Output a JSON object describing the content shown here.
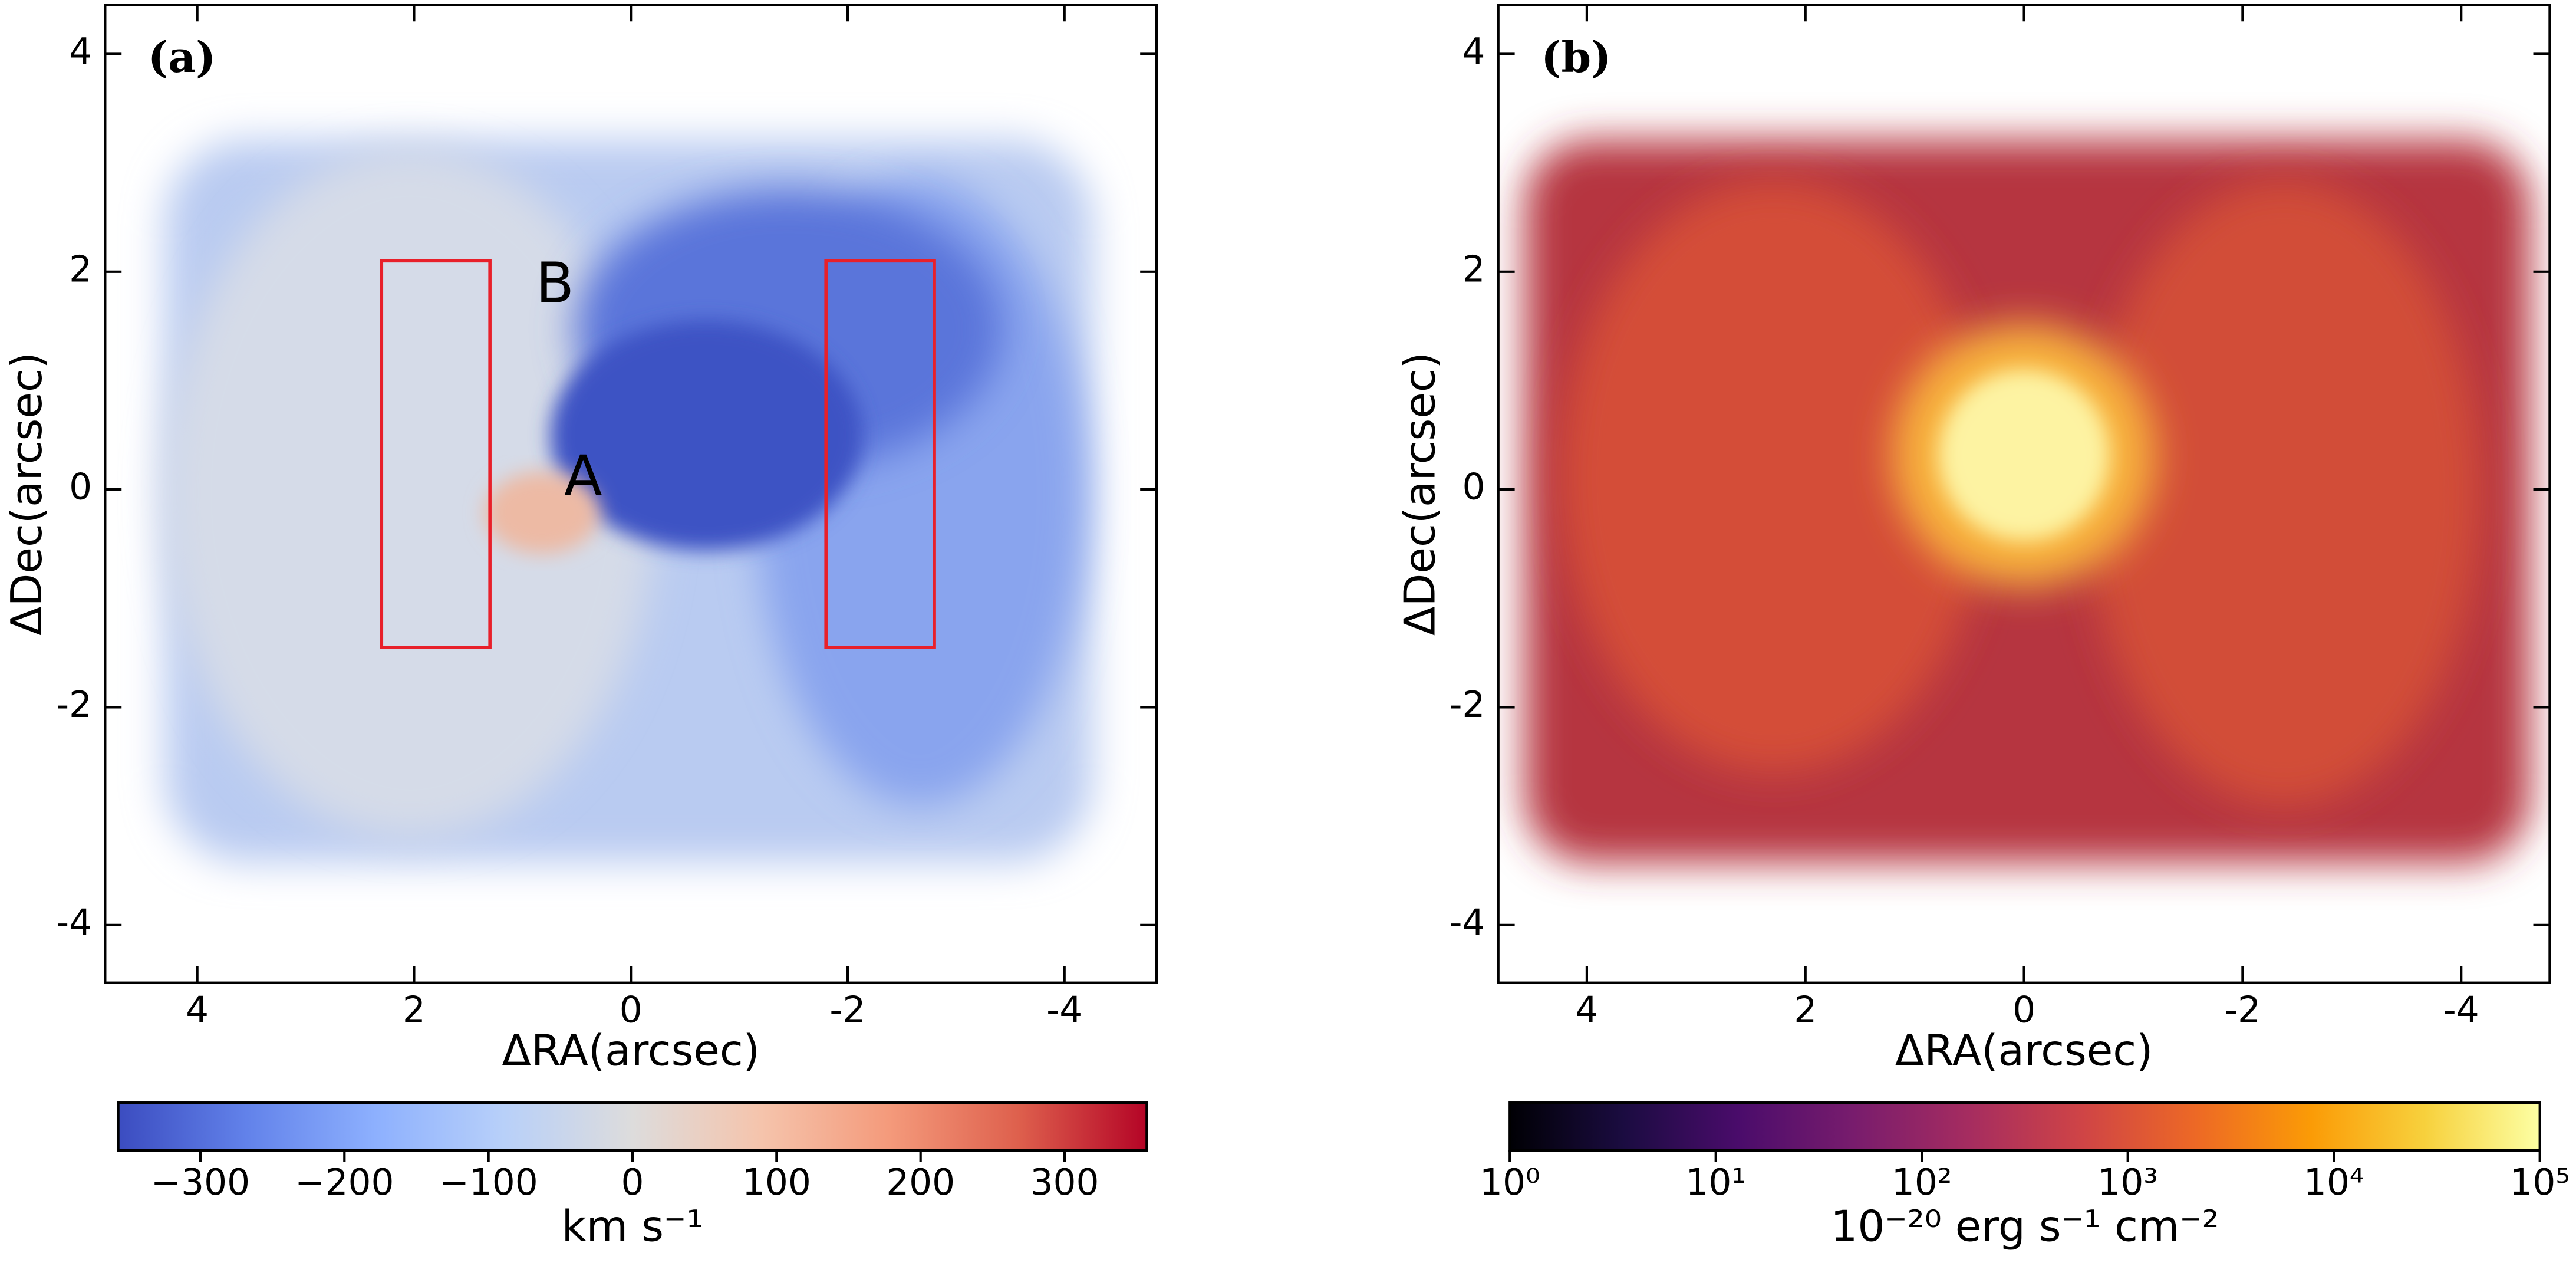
{
  "chart_data": [
    {
      "type": "image",
      "panel_label": "(a)",
      "xlabel": "ΔRA(arcsec)",
      "ylabel": "ΔDec(arcsec)",
      "xlim": [
        4.85,
        -4.85
      ],
      "ylim": [
        -4.53,
        4.45
      ],
      "xticks": [
        4,
        2,
        0,
        -2,
        -4
      ],
      "yticks": [
        -4,
        -2,
        0,
        2,
        4
      ],
      "cmap": "coolwarm",
      "clim": [
        -357,
        357
      ],
      "cticks": [
        {
          "value": -300,
          "label": "−300"
        },
        {
          "value": -200,
          "label": "−200"
        },
        {
          "value": -100,
          "label": "−100"
        },
        0,
        100,
        200,
        300
      ],
      "clabel": "km s⁻¹",
      "boxes": [
        {
          "x": [
            2.3,
            1.3
          ],
          "y": [
            -1.45,
            2.1
          ]
        },
        {
          "x": [
            -1.8,
            -2.8
          ],
          "y": [
            -1.45,
            2.1
          ]
        }
      ],
      "annotations": [
        {
          "text": "B",
          "x": 0.7,
          "y": 1.86
        },
        {
          "text": "A",
          "x": 0.44,
          "y": 0.09
        }
      ],
      "annotation_color": "#e8202a"
    },
    {
      "type": "image",
      "panel_label": "(b)",
      "xlabel": "ΔRA(arcsec)",
      "ylabel": "ΔDec(arcsec)",
      "xlim": [
        4.81,
        -4.81
      ],
      "ylim": [
        -4.53,
        4.45
      ],
      "xticks": [
        4,
        2,
        0,
        -2,
        -4
      ],
      "yticks": [
        -4,
        -2,
        0,
        2,
        4
      ],
      "cmap": "inferno",
      "log_c": true,
      "clim": [
        1,
        100000
      ],
      "cticks": [
        {
          "value": 1,
          "label": "10⁰"
        },
        {
          "value": 10,
          "label": "10¹"
        },
        {
          "value": 100,
          "label": "10²"
        },
        {
          "value": 1000,
          "label": "10³"
        },
        {
          "value": 10000,
          "label": "10⁴"
        },
        {
          "value": 100000,
          "label": "10⁵"
        }
      ],
      "clabel": "10⁻²⁰ erg s⁻¹ cm⁻²"
    }
  ]
}
